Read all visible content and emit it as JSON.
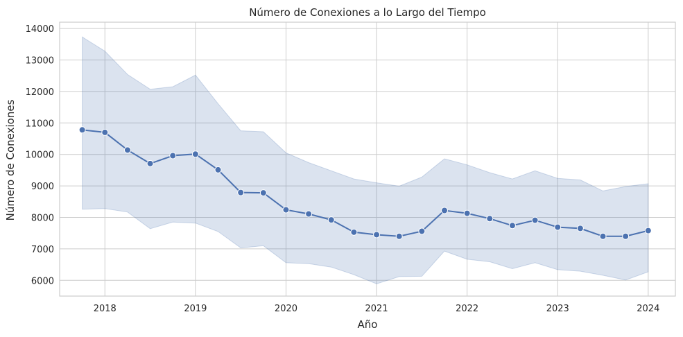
{
  "chart_data": {
    "type": "line",
    "title": "Número de Conexiones a lo Largo del Tiempo",
    "xlabel": "Año",
    "ylabel": "Número de Conexiones",
    "xlim": [
      2017.5,
      2024.3
    ],
    "ylim": [
      5500,
      14200
    ],
    "x_ticks": [
      2018,
      2019,
      2020,
      2021,
      2022,
      2023,
      2024
    ],
    "y_ticks": [
      6000,
      7000,
      8000,
      9000,
      10000,
      11000,
      12000,
      13000,
      14000
    ],
    "grid": true,
    "legend": "none",
    "colors": {
      "line": "#4c72b0",
      "band": "#4c72b0",
      "grid": "#cccccc",
      "axis": "#cccccc"
    },
    "series": [
      {
        "x": [
          2017.75,
          2018.0,
          2018.25,
          2018.5,
          2018.75,
          2019.0,
          2019.25,
          2019.5,
          2019.75,
          2020.0,
          2020.25,
          2020.5,
          2020.75,
          2021.0,
          2021.25,
          2021.5,
          2021.75,
          2022.0,
          2022.25,
          2022.5,
          2022.75,
          2023.0,
          2023.25,
          2023.5,
          2023.75,
          2024.0
        ],
        "y": [
          10780,
          10700,
          10140,
          9710,
          9960,
          10010,
          9510,
          8790,
          8780,
          8240,
          8110,
          7920,
          7530,
          7450,
          7400,
          7560,
          8220,
          8130,
          7960,
          7740,
          7910,
          7690,
          7650,
          7400,
          7400,
          7580
        ],
        "ci_upper": [
          13730,
          13280,
          12540,
          12070,
          12150,
          12520,
          11610,
          10750,
          10720,
          10050,
          9740,
          9480,
          9220,
          9100,
          8990,
          9280,
          9860,
          9670,
          9420,
          9220,
          9480,
          9240,
          9190,
          8840,
          8980,
          9070
        ],
        "ci_lower": [
          8260,
          8280,
          8170,
          7640,
          7850,
          7820,
          7550,
          7030,
          7100,
          6560,
          6530,
          6420,
          6180,
          5890,
          6120,
          6130,
          6930,
          6670,
          6590,
          6370,
          6560,
          6340,
          6290,
          6160,
          6010,
          6270
        ]
      }
    ]
  }
}
